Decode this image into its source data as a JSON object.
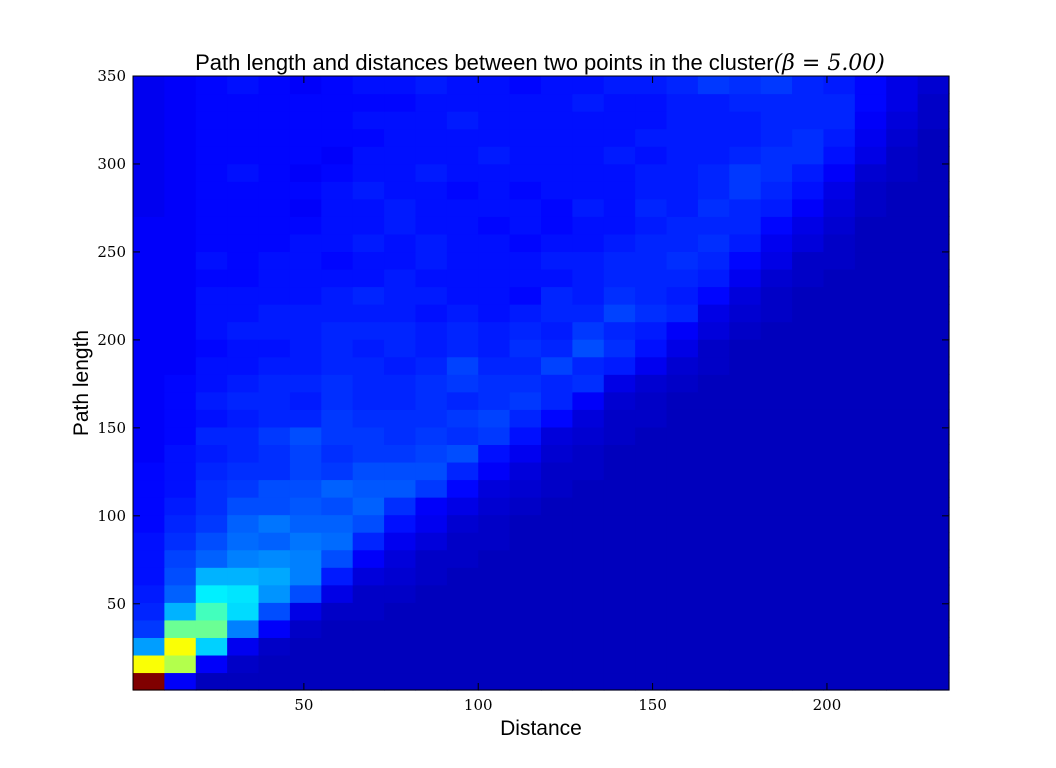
{
  "chart_data": {
    "type": "heatmap",
    "title": "Path length and distances between two points in the cluster",
    "title_math": "(β = 5.00)",
    "xlabel": "Distance",
    "ylabel": "Path length",
    "xlim": [
      1,
      235
    ],
    "ylim": [
      1,
      350
    ],
    "xticks": [
      50,
      100,
      150,
      200
    ],
    "yticks": [
      50,
      100,
      150,
      200,
      250,
      300,
      350
    ],
    "colormap": "jet",
    "grid": false,
    "x_bins": 26,
    "y_bins": 35,
    "rows": [
      [
        1.0,
        0.12,
        0.06,
        0.06,
        0.06,
        0.06,
        0.06,
        0.06,
        0.06,
        0.06,
        0.06,
        0.06,
        0.06,
        0.06,
        0.06,
        0.06,
        0.06,
        0.06,
        0.06,
        0.06,
        0.06,
        0.06,
        0.06,
        0.06,
        0.06,
        0.06
      ],
      [
        0.62,
        0.55,
        0.12,
        0.07,
        0.06,
        0.06,
        0.06,
        0.06,
        0.06,
        0.06,
        0.06,
        0.06,
        0.06,
        0.06,
        0.06,
        0.06,
        0.06,
        0.06,
        0.06,
        0.06,
        0.06,
        0.06,
        0.06,
        0.06,
        0.06,
        0.06
      ],
      [
        0.28,
        0.62,
        0.33,
        0.11,
        0.07,
        0.06,
        0.06,
        0.06,
        0.06,
        0.06,
        0.06,
        0.06,
        0.06,
        0.06,
        0.06,
        0.06,
        0.06,
        0.06,
        0.06,
        0.06,
        0.06,
        0.06,
        0.06,
        0.06,
        0.06,
        0.06
      ],
      [
        0.18,
        0.48,
        0.48,
        0.25,
        0.12,
        0.07,
        0.06,
        0.06,
        0.06,
        0.06,
        0.06,
        0.06,
        0.06,
        0.06,
        0.06,
        0.06,
        0.06,
        0.06,
        0.06,
        0.06,
        0.06,
        0.06,
        0.06,
        0.06,
        0.06,
        0.06
      ],
      [
        0.16,
        0.3,
        0.44,
        0.34,
        0.2,
        0.1,
        0.07,
        0.07,
        0.06,
        0.06,
        0.06,
        0.06,
        0.06,
        0.06,
        0.06,
        0.06,
        0.06,
        0.06,
        0.06,
        0.06,
        0.06,
        0.06,
        0.06,
        0.06,
        0.06,
        0.06
      ],
      [
        0.15,
        0.22,
        0.36,
        0.35,
        0.27,
        0.2,
        0.1,
        0.07,
        0.07,
        0.06,
        0.06,
        0.06,
        0.06,
        0.06,
        0.06,
        0.06,
        0.06,
        0.06,
        0.06,
        0.06,
        0.06,
        0.06,
        0.06,
        0.06,
        0.06,
        0.06
      ],
      [
        0.14,
        0.2,
        0.3,
        0.3,
        0.29,
        0.25,
        0.15,
        0.09,
        0.08,
        0.07,
        0.06,
        0.06,
        0.06,
        0.06,
        0.06,
        0.06,
        0.06,
        0.06,
        0.06,
        0.06,
        0.06,
        0.06,
        0.06,
        0.06,
        0.06,
        0.06
      ],
      [
        0.14,
        0.19,
        0.22,
        0.25,
        0.26,
        0.25,
        0.2,
        0.12,
        0.09,
        0.07,
        0.07,
        0.06,
        0.06,
        0.06,
        0.06,
        0.06,
        0.06,
        0.06,
        0.06,
        0.06,
        0.06,
        0.06,
        0.06,
        0.06,
        0.06,
        0.06
      ],
      [
        0.14,
        0.17,
        0.2,
        0.23,
        0.22,
        0.24,
        0.23,
        0.16,
        0.11,
        0.09,
        0.07,
        0.07,
        0.06,
        0.06,
        0.06,
        0.06,
        0.06,
        0.06,
        0.06,
        0.06,
        0.06,
        0.06,
        0.06,
        0.06,
        0.06,
        0.06
      ],
      [
        0.13,
        0.16,
        0.18,
        0.22,
        0.24,
        0.22,
        0.22,
        0.2,
        0.14,
        0.11,
        0.08,
        0.07,
        0.06,
        0.06,
        0.06,
        0.06,
        0.06,
        0.06,
        0.06,
        0.06,
        0.06,
        0.06,
        0.06,
        0.06,
        0.06,
        0.06
      ],
      [
        0.13,
        0.15,
        0.17,
        0.2,
        0.2,
        0.21,
        0.2,
        0.22,
        0.17,
        0.12,
        0.1,
        0.08,
        0.07,
        0.06,
        0.06,
        0.06,
        0.06,
        0.06,
        0.06,
        0.06,
        0.06,
        0.06,
        0.06,
        0.06,
        0.06,
        0.06
      ],
      [
        0.13,
        0.14,
        0.17,
        0.18,
        0.2,
        0.2,
        0.22,
        0.21,
        0.21,
        0.18,
        0.13,
        0.09,
        0.08,
        0.07,
        0.06,
        0.06,
        0.06,
        0.06,
        0.06,
        0.06,
        0.06,
        0.06,
        0.06,
        0.06,
        0.06,
        0.06
      ],
      [
        0.13,
        0.14,
        0.16,
        0.17,
        0.17,
        0.19,
        0.18,
        0.2,
        0.2,
        0.2,
        0.16,
        0.12,
        0.09,
        0.07,
        0.07,
        0.06,
        0.06,
        0.06,
        0.06,
        0.06,
        0.06,
        0.06,
        0.06,
        0.06,
        0.06,
        0.06
      ],
      [
        0.12,
        0.14,
        0.15,
        0.16,
        0.17,
        0.19,
        0.17,
        0.18,
        0.18,
        0.19,
        0.2,
        0.14,
        0.11,
        0.08,
        0.07,
        0.06,
        0.06,
        0.06,
        0.06,
        0.06,
        0.06,
        0.06,
        0.06,
        0.06,
        0.06,
        0.06
      ],
      [
        0.12,
        0.13,
        0.16,
        0.16,
        0.18,
        0.2,
        0.18,
        0.18,
        0.17,
        0.18,
        0.17,
        0.18,
        0.14,
        0.09,
        0.08,
        0.07,
        0.06,
        0.06,
        0.06,
        0.06,
        0.06,
        0.06,
        0.06,
        0.06,
        0.06,
        0.06
      ],
      [
        0.12,
        0.13,
        0.14,
        0.15,
        0.16,
        0.16,
        0.18,
        0.17,
        0.17,
        0.17,
        0.18,
        0.19,
        0.16,
        0.13,
        0.09,
        0.07,
        0.07,
        0.06,
        0.06,
        0.06,
        0.06,
        0.06,
        0.06,
        0.06,
        0.06,
        0.06
      ],
      [
        0.12,
        0.13,
        0.15,
        0.16,
        0.16,
        0.15,
        0.17,
        0.16,
        0.16,
        0.17,
        0.16,
        0.17,
        0.18,
        0.16,
        0.12,
        0.08,
        0.07,
        0.06,
        0.06,
        0.06,
        0.06,
        0.06,
        0.06,
        0.06,
        0.06,
        0.06
      ],
      [
        0.12,
        0.13,
        0.14,
        0.15,
        0.16,
        0.16,
        0.17,
        0.16,
        0.16,
        0.17,
        0.18,
        0.17,
        0.17,
        0.16,
        0.17,
        0.1,
        0.08,
        0.07,
        0.06,
        0.06,
        0.06,
        0.06,
        0.06,
        0.06,
        0.06,
        0.06
      ],
      [
        0.12,
        0.12,
        0.14,
        0.14,
        0.15,
        0.15,
        0.16,
        0.16,
        0.15,
        0.16,
        0.19,
        0.16,
        0.16,
        0.19,
        0.16,
        0.15,
        0.11,
        0.08,
        0.07,
        0.06,
        0.06,
        0.06,
        0.06,
        0.06,
        0.06,
        0.06
      ],
      [
        0.12,
        0.12,
        0.13,
        0.14,
        0.14,
        0.15,
        0.16,
        0.15,
        0.16,
        0.15,
        0.16,
        0.15,
        0.17,
        0.16,
        0.2,
        0.17,
        0.14,
        0.1,
        0.07,
        0.06,
        0.06,
        0.06,
        0.06,
        0.06,
        0.06,
        0.06
      ],
      [
        0.12,
        0.12,
        0.14,
        0.15,
        0.15,
        0.15,
        0.16,
        0.16,
        0.16,
        0.15,
        0.16,
        0.15,
        0.16,
        0.15,
        0.18,
        0.16,
        0.15,
        0.12,
        0.09,
        0.07,
        0.06,
        0.06,
        0.06,
        0.06,
        0.06,
        0.06
      ],
      [
        0.12,
        0.12,
        0.14,
        0.14,
        0.15,
        0.15,
        0.15,
        0.15,
        0.15,
        0.14,
        0.15,
        0.14,
        0.15,
        0.16,
        0.16,
        0.19,
        0.17,
        0.16,
        0.1,
        0.08,
        0.07,
        0.06,
        0.06,
        0.06,
        0.06,
        0.06
      ],
      [
        0.12,
        0.12,
        0.14,
        0.14,
        0.14,
        0.14,
        0.15,
        0.16,
        0.15,
        0.15,
        0.14,
        0.14,
        0.13,
        0.16,
        0.15,
        0.17,
        0.16,
        0.15,
        0.13,
        0.09,
        0.07,
        0.06,
        0.06,
        0.06,
        0.06,
        0.06
      ],
      [
        0.12,
        0.12,
        0.13,
        0.13,
        0.14,
        0.14,
        0.14,
        0.14,
        0.15,
        0.14,
        0.14,
        0.14,
        0.14,
        0.14,
        0.15,
        0.16,
        0.16,
        0.16,
        0.15,
        0.11,
        0.08,
        0.07,
        0.06,
        0.06,
        0.06,
        0.06
      ],
      [
        0.12,
        0.12,
        0.14,
        0.13,
        0.14,
        0.14,
        0.13,
        0.14,
        0.14,
        0.15,
        0.14,
        0.14,
        0.14,
        0.15,
        0.15,
        0.16,
        0.16,
        0.17,
        0.16,
        0.13,
        0.1,
        0.07,
        0.07,
        0.06,
        0.06,
        0.06
      ],
      [
        0.12,
        0.12,
        0.13,
        0.13,
        0.13,
        0.14,
        0.14,
        0.15,
        0.14,
        0.15,
        0.14,
        0.14,
        0.13,
        0.14,
        0.14,
        0.15,
        0.16,
        0.16,
        0.17,
        0.15,
        0.11,
        0.09,
        0.07,
        0.06,
        0.06,
        0.06
      ],
      [
        0.12,
        0.12,
        0.13,
        0.13,
        0.13,
        0.13,
        0.14,
        0.14,
        0.15,
        0.14,
        0.14,
        0.13,
        0.14,
        0.13,
        0.14,
        0.14,
        0.15,
        0.16,
        0.16,
        0.16,
        0.13,
        0.1,
        0.08,
        0.06,
        0.06,
        0.06
      ],
      [
        0.11,
        0.12,
        0.13,
        0.13,
        0.13,
        0.12,
        0.14,
        0.14,
        0.15,
        0.14,
        0.14,
        0.14,
        0.14,
        0.13,
        0.15,
        0.14,
        0.16,
        0.15,
        0.17,
        0.16,
        0.15,
        0.12,
        0.09,
        0.07,
        0.06,
        0.06
      ],
      [
        0.11,
        0.12,
        0.13,
        0.13,
        0.13,
        0.13,
        0.14,
        0.15,
        0.14,
        0.14,
        0.13,
        0.14,
        0.13,
        0.14,
        0.14,
        0.14,
        0.15,
        0.15,
        0.16,
        0.18,
        0.16,
        0.14,
        0.1,
        0.07,
        0.06,
        0.06
      ],
      [
        0.11,
        0.12,
        0.13,
        0.14,
        0.13,
        0.12,
        0.13,
        0.14,
        0.14,
        0.15,
        0.14,
        0.14,
        0.14,
        0.14,
        0.14,
        0.14,
        0.15,
        0.15,
        0.16,
        0.18,
        0.17,
        0.15,
        0.12,
        0.08,
        0.07,
        0.06
      ],
      [
        0.11,
        0.12,
        0.13,
        0.13,
        0.13,
        0.13,
        0.12,
        0.14,
        0.14,
        0.14,
        0.14,
        0.15,
        0.14,
        0.14,
        0.14,
        0.15,
        0.14,
        0.15,
        0.15,
        0.16,
        0.17,
        0.17,
        0.14,
        0.1,
        0.07,
        0.06
      ],
      [
        0.11,
        0.12,
        0.13,
        0.13,
        0.13,
        0.13,
        0.13,
        0.13,
        0.14,
        0.14,
        0.14,
        0.14,
        0.14,
        0.14,
        0.14,
        0.14,
        0.15,
        0.15,
        0.15,
        0.15,
        0.16,
        0.17,
        0.15,
        0.11,
        0.08,
        0.06
      ],
      [
        0.11,
        0.12,
        0.13,
        0.13,
        0.13,
        0.13,
        0.13,
        0.14,
        0.14,
        0.14,
        0.15,
        0.14,
        0.14,
        0.14,
        0.14,
        0.14,
        0.14,
        0.15,
        0.15,
        0.15,
        0.16,
        0.16,
        0.16,
        0.12,
        0.09,
        0.07
      ],
      [
        0.11,
        0.12,
        0.13,
        0.13,
        0.13,
        0.13,
        0.13,
        0.13,
        0.13,
        0.14,
        0.14,
        0.14,
        0.14,
        0.14,
        0.15,
        0.14,
        0.14,
        0.15,
        0.15,
        0.16,
        0.16,
        0.16,
        0.16,
        0.13,
        0.1,
        0.07
      ],
      [
        0.11,
        0.12,
        0.13,
        0.14,
        0.13,
        0.12,
        0.13,
        0.14,
        0.14,
        0.15,
        0.14,
        0.14,
        0.13,
        0.14,
        0.14,
        0.15,
        0.15,
        0.16,
        0.18,
        0.17,
        0.18,
        0.16,
        0.15,
        0.13,
        0.1,
        0.08
      ]
    ]
  }
}
